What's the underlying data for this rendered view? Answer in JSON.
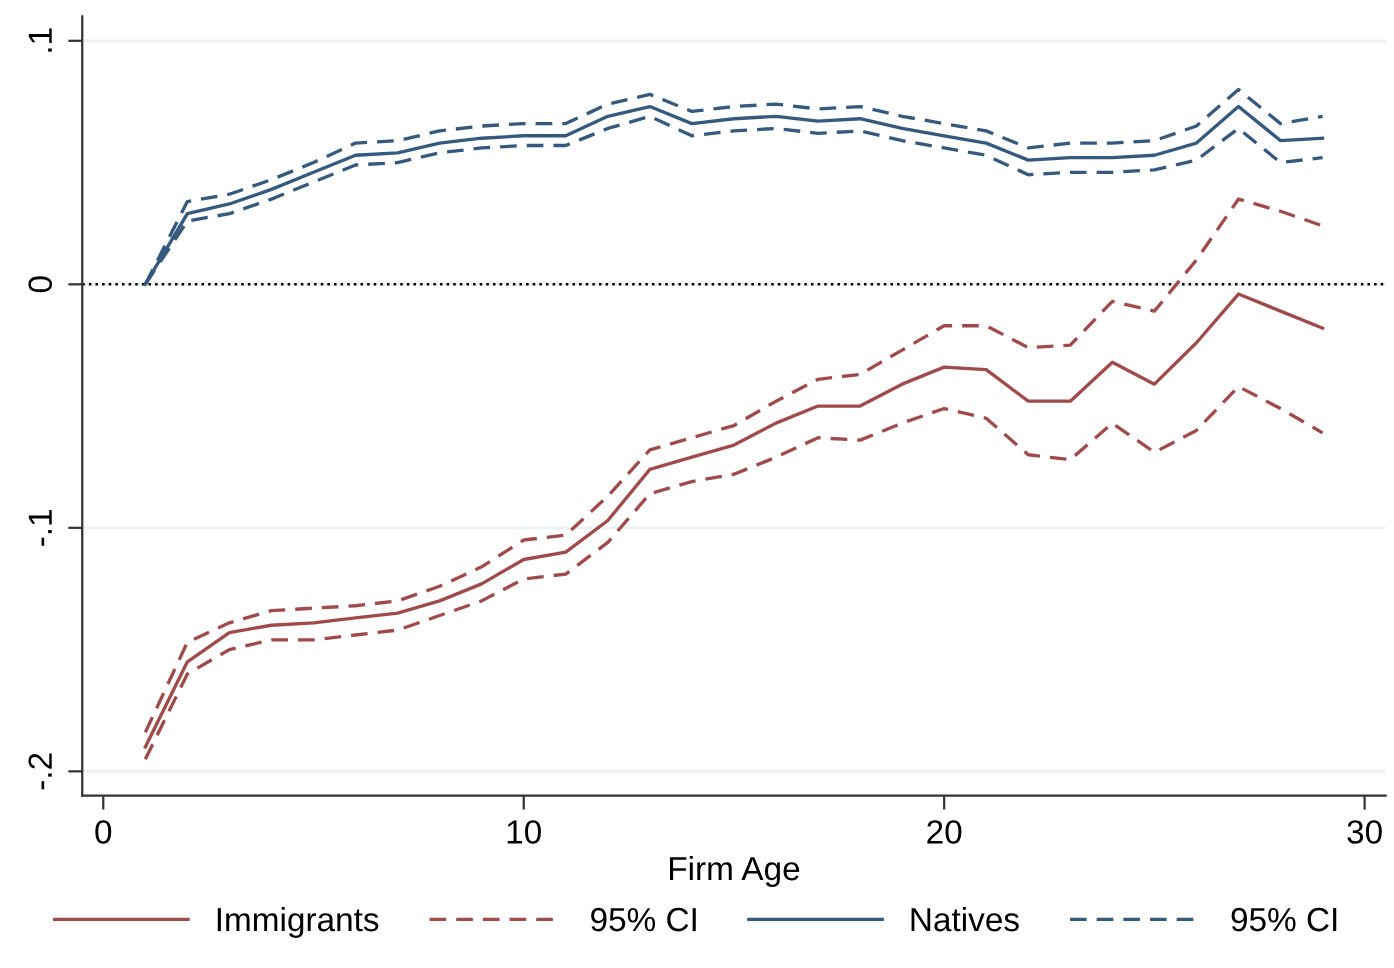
{
  "chart_data": {
    "type": "line",
    "xlabel": "Firm Age",
    "x": [
      1,
      2,
      3,
      4,
      5,
      6,
      7,
      8,
      9,
      10,
      11,
      12,
      13,
      14,
      15,
      16,
      17,
      18,
      19,
      20,
      21,
      22,
      23,
      24,
      25,
      26,
      27,
      28,
      29
    ],
    "series": [
      {
        "name": "Immigrants",
        "color": "#a04b4b",
        "line_style": "solid",
        "values": [
          -0.19,
          -0.155,
          -0.143,
          -0.14,
          -0.139,
          -0.137,
          -0.135,
          -0.13,
          -0.123,
          -0.113,
          -0.11,
          -0.097,
          -0.076,
          -0.071,
          -0.066,
          -0.057,
          -0.05,
          -0.05,
          -0.041,
          -0.034,
          -0.035,
          -0.048,
          -0.048,
          -0.032,
          -0.041,
          -0.024,
          -0.004,
          -0.011,
          -0.018
        ]
      },
      {
        "name": "95% CI",
        "color": "#a04b4b",
        "line_style": "dashed",
        "values": [
          -0.184,
          -0.147,
          -0.139,
          -0.134,
          -0.133,
          -0.132,
          -0.13,
          -0.124,
          -0.116,
          -0.105,
          -0.103,
          -0.087,
          -0.068,
          -0.063,
          -0.058,
          -0.048,
          -0.039,
          -0.037,
          -0.027,
          -0.017,
          -0.017,
          -0.026,
          -0.025,
          -0.007,
          -0.011,
          0.01,
          0.035,
          0.03,
          0.024
        ]
      },
      {
        "color": "#a04b4b",
        "line_style": "dashed",
        "values": [
          -0.195,
          -0.16,
          -0.15,
          -0.146,
          -0.146,
          -0.144,
          -0.142,
          -0.136,
          -0.13,
          -0.121,
          -0.119,
          -0.106,
          -0.086,
          -0.081,
          -0.078,
          -0.071,
          -0.063,
          -0.064,
          -0.057,
          -0.051,
          -0.055,
          -0.07,
          -0.072,
          -0.057,
          -0.069,
          -0.06,
          -0.042,
          -0.051,
          -0.061
        ]
      },
      {
        "name": "Natives",
        "color": "#36597e",
        "line_style": "solid",
        "values": [
          0,
          0.029,
          0.033,
          0.039,
          0.046,
          0.053,
          0.054,
          0.058,
          0.06,
          0.061,
          0.061,
          0.069,
          0.073,
          0.066,
          0.068,
          0.069,
          0.067,
          0.068,
          0.064,
          0.061,
          0.058,
          0.051,
          0.052,
          0.052,
          0.053,
          0.058,
          0.073,
          0.059,
          0.06
        ]
      },
      {
        "name": "95% CI",
        "color": "#36597e",
        "line_style": "dashed",
        "values": [
          0,
          0.034,
          0.037,
          0.043,
          0.05,
          0.058,
          0.059,
          0.063,
          0.065,
          0.066,
          0.066,
          0.074,
          0.078,
          0.071,
          0.073,
          0.074,
          0.072,
          0.073,
          0.069,
          0.066,
          0.063,
          0.056,
          0.058,
          0.058,
          0.059,
          0.065,
          0.08,
          0.066,
          0.069
        ]
      },
      {
        "color": "#36597e",
        "line_style": "dashed",
        "values": [
          0,
          0.026,
          0.029,
          0.035,
          0.042,
          0.049,
          0.05,
          0.054,
          0.056,
          0.057,
          0.057,
          0.064,
          0.069,
          0.061,
          0.063,
          0.064,
          0.062,
          0.063,
          0.059,
          0.056,
          0.053,
          0.045,
          0.046,
          0.046,
          0.047,
          0.051,
          0.064,
          0.05,
          0.052
        ]
      }
    ],
    "xlim": [
      -0.5,
      30.5
    ],
    "ylim": [
      -0.21,
      0.11
    ],
    "xticks": [
      0,
      10,
      20,
      30
    ],
    "yticks": [
      {
        "value": -0.2,
        "label": "-.2"
      },
      {
        "value": -0.1,
        "label": "-.1"
      },
      {
        "value": 0,
        "label": "0"
      },
      {
        "value": 0.1,
        "label": ".1"
      }
    ],
    "ref_lines": [
      {
        "axis": "y",
        "value": 0,
        "color": "#000000",
        "line_style": "dotted"
      }
    ],
    "grid": "y",
    "legend": "bottom",
    "marker": "none"
  }
}
